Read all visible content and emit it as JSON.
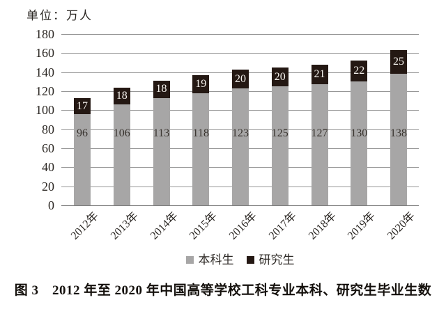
{
  "unit_label": "单位：万人",
  "caption": "图 3　2012 年至 2020 年中国高等学校工科专业本科、研究生毕业生数",
  "legend": {
    "undergrad_label": "本科生",
    "grad_label": "研究生"
  },
  "chart_data": {
    "type": "bar",
    "stacked": true,
    "title": "图 3　2012 年至 2020 年中国高等学校工科专业本科、研究生毕业生数",
    "unit_label": "单位：万人",
    "categories": [
      "2012年",
      "2013年",
      "2014年",
      "2015年",
      "2016年",
      "2017年",
      "2018年",
      "2019年",
      "2020年"
    ],
    "series": [
      {
        "name": "本科生",
        "color": "#a7a6a6",
        "label_color": "#38332e",
        "values": [
          96,
          106,
          113,
          118,
          123,
          125,
          127,
          130,
          138
        ]
      },
      {
        "name": "研究生",
        "color": "#241813",
        "label_color": "#f6f3ee",
        "values": [
          17,
          18,
          18,
          19,
          20,
          20,
          21,
          22,
          25
        ]
      }
    ],
    "ylim": [
      0,
      180
    ],
    "ytick_step": 20,
    "ytick_labels": [
      "0",
      "20",
      "40",
      "60",
      "80",
      "100",
      "120",
      "140",
      "160",
      "180"
    ],
    "xlabel": "",
    "ylabel": "",
    "grid": "horizontal",
    "legend_position": "bottom"
  }
}
